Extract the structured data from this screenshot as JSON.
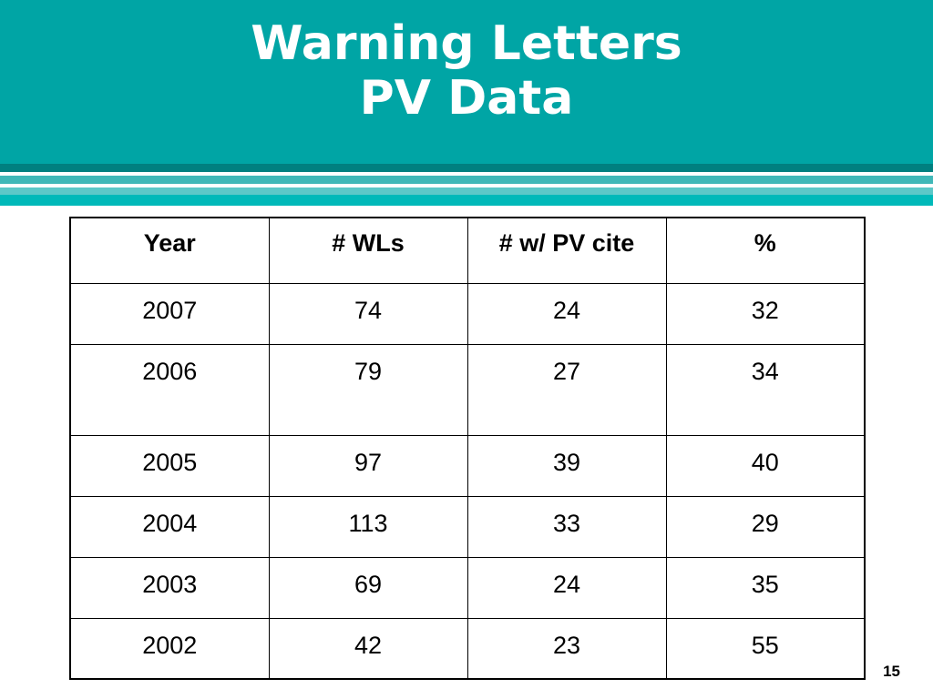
{
  "slide": {
    "title_line1": "Warning Letters",
    "title_line2": "PV Data",
    "page_number": "15",
    "accent_color": "#00a5a5"
  },
  "table": {
    "headers": [
      "Year",
      "# WLs",
      "# w/ PV cite",
      "%"
    ],
    "rows": [
      [
        "2007",
        "74",
        "24",
        "32"
      ],
      [
        "2006",
        "79",
        "27",
        "34"
      ],
      [
        "2005",
        "97",
        "39",
        "40"
      ],
      [
        "2004",
        "113",
        "33",
        "29"
      ],
      [
        "2003",
        "69",
        "24",
        "35"
      ],
      [
        "2002",
        "42",
        "23",
        "55"
      ]
    ]
  }
}
